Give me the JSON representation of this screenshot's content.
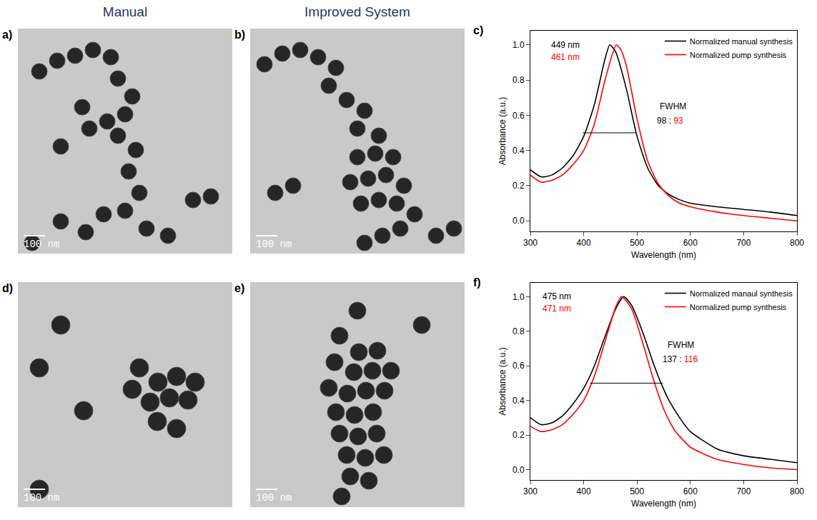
{
  "column_titles": [
    "Manual",
    "Improved System"
  ],
  "images": [
    {
      "panel": "a)",
      "scale_bar": "100 nm"
    },
    {
      "panel": "b)",
      "scale_bar": "100 nm"
    },
    {
      "panel": "d)",
      "scale_bar": "100 nm"
    },
    {
      "panel": "e)",
      "scale_bar": "100 nm"
    }
  ],
  "chart_data": [
    {
      "type": "line",
      "panel": "c)",
      "x_label": "Wavelength (nm)",
      "y_label": "Absorbance (a.u.)",
      "xlim": [
        300,
        800
      ],
      "xticks": [
        300,
        400,
        500,
        600,
        700,
        800
      ],
      "ylim": [
        -0.06,
        1.08
      ],
      "yticks": [
        {
          "value": 0,
          "label": "0.0"
        },
        0.2,
        0.4,
        0.6,
        0.8,
        {
          "value": 1,
          "label": "1.0"
        }
      ],
      "grid": false,
      "legend": "upper right",
      "series": [
        {
          "name": "Normalized manual synthesis",
          "color": "#000000",
          "x": [
            300,
            320,
            340,
            360,
            380,
            400,
            420,
            440,
            449,
            460,
            480,
            500,
            520,
            540,
            560,
            580,
            600,
            650,
            700,
            750,
            800
          ],
          "values": [
            0.29,
            0.25,
            0.26,
            0.3,
            0.37,
            0.48,
            0.66,
            0.92,
            1.0,
            0.96,
            0.75,
            0.48,
            0.3,
            0.2,
            0.15,
            0.12,
            0.1,
            0.08,
            0.065,
            0.05,
            0.03
          ]
        },
        {
          "name": "Normalized pump synthesis",
          "color": "#ff0000",
          "x": [
            300,
            320,
            340,
            360,
            380,
            400,
            420,
            440,
            461,
            470,
            480,
            500,
            520,
            540,
            560,
            580,
            600,
            650,
            700,
            750,
            800
          ],
          "values": [
            0.26,
            0.22,
            0.23,
            0.26,
            0.32,
            0.4,
            0.55,
            0.8,
            1.0,
            0.97,
            0.88,
            0.58,
            0.34,
            0.21,
            0.14,
            0.1,
            0.08,
            0.05,
            0.03,
            0.015,
            0.0
          ]
        }
      ],
      "fwhm_line": {
        "y": 0.5,
        "x": [
          398,
          498
        ]
      },
      "annotations": [
        {
          "x": 366,
          "y": 1.0,
          "parts": [
            {
              "text": "449 nm",
              "color": "#000000"
            }
          ]
        },
        {
          "x": 366,
          "y": 0.93,
          "parts": [
            {
              "text": "461 nm",
              "color": "#ff0000"
            }
          ]
        },
        {
          "x": 568,
          "y": 0.65,
          "parts": [
            {
              "text": "FWHM",
              "color": "#000000"
            }
          ]
        },
        {
          "x": 562,
          "y": 0.57,
          "parts": [
            {
              "text": "98",
              "color": "#000000"
            },
            {
              "text": " : ",
              "color": "#000000"
            },
            {
              "text": "93",
              "color": "#ff0000"
            }
          ]
        }
      ]
    },
    {
      "type": "line",
      "panel": "f)",
      "x_label": "Wavelength (nm)",
      "y_label": "Absorbance (a.u.)",
      "xlim": [
        300,
        800
      ],
      "xticks": [
        300,
        400,
        500,
        600,
        700,
        800
      ],
      "ylim": [
        -0.06,
        1.08
      ],
      "yticks": [
        {
          "value": 0,
          "label": "0.0"
        },
        0.2,
        0.4,
        0.6,
        0.8,
        {
          "value": 1,
          "label": "1.0"
        }
      ],
      "grid": false,
      "legend": "upper right",
      "series": [
        {
          "name": "Normalized manaul synthesis",
          "color": "#000000",
          "x": [
            300,
            320,
            340,
            360,
            380,
            400,
            420,
            440,
            460,
            475,
            490,
            510,
            530,
            545,
            560,
            580,
            600,
            650,
            700,
            750,
            800
          ],
          "values": [
            0.3,
            0.26,
            0.27,
            0.31,
            0.38,
            0.47,
            0.6,
            0.77,
            0.93,
            1.0,
            0.95,
            0.8,
            0.62,
            0.5,
            0.4,
            0.3,
            0.22,
            0.12,
            0.08,
            0.06,
            0.04
          ]
        },
        {
          "name": "Normalized pump synthesis",
          "color": "#ff0000",
          "x": [
            300,
            320,
            340,
            360,
            380,
            400,
            420,
            440,
            460,
            471,
            490,
            510,
            530,
            550,
            570,
            600,
            650,
            700,
            750,
            800
          ],
          "values": [
            0.25,
            0.22,
            0.23,
            0.26,
            0.32,
            0.4,
            0.54,
            0.74,
            0.94,
            1.0,
            0.93,
            0.74,
            0.53,
            0.35,
            0.23,
            0.13,
            0.06,
            0.03,
            0.01,
            0.0
          ]
        }
      ],
      "fwhm_line": {
        "y": 0.5,
        "x": [
          412,
          548
        ]
      },
      "annotations": [
        {
          "x": 350,
          "y": 1.0,
          "parts": [
            {
              "text": "475 nm",
              "color": "#000000"
            }
          ]
        },
        {
          "x": 350,
          "y": 0.93,
          "parts": [
            {
              "text": "471 nm",
              "color": "#ff0000"
            }
          ]
        },
        {
          "x": 582,
          "y": 0.72,
          "parts": [
            {
              "text": "FWHM",
              "color": "#000000"
            }
          ]
        },
        {
          "x": 582,
          "y": 0.64,
          "parts": [
            {
              "text": "137",
              "color": "#000000"
            },
            {
              "text": " : ",
              "color": "#000000"
            },
            {
              "text": "116",
              "color": "#ff0000"
            }
          ]
        }
      ]
    }
  ]
}
